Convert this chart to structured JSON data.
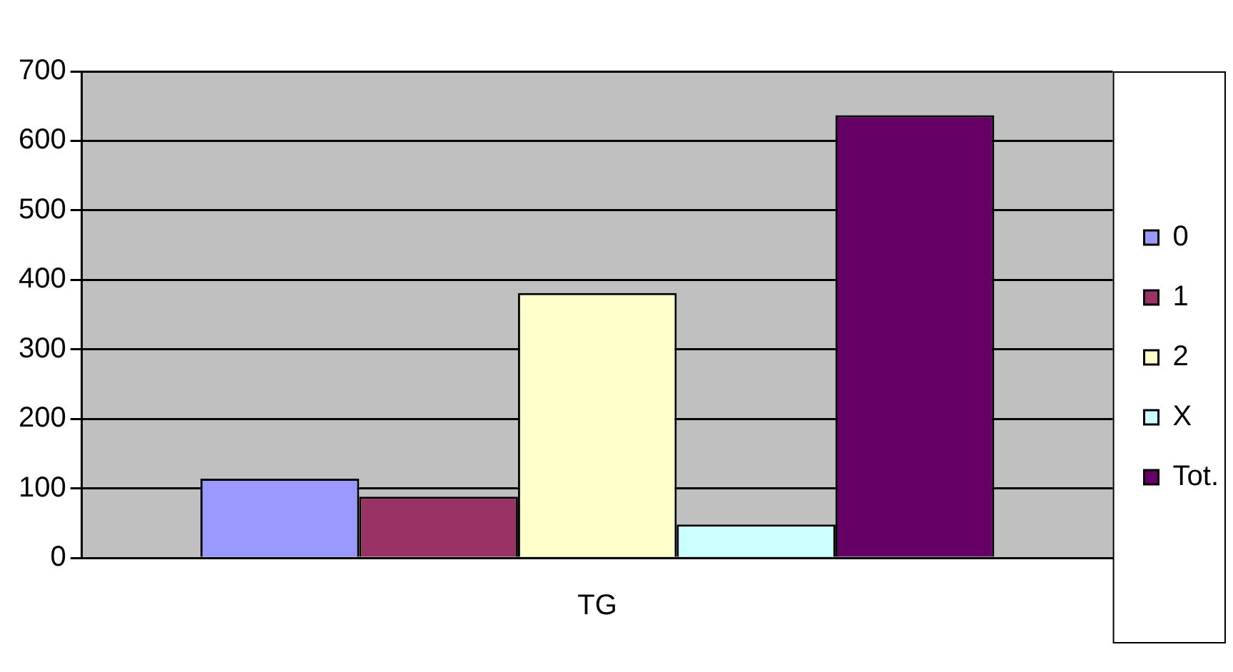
{
  "chart_data": {
    "type": "bar",
    "categories": [
      "TG"
    ],
    "series": [
      {
        "name": "0",
        "color": "#9999ff",
        "values": [
          114
        ]
      },
      {
        "name": "1",
        "color": "#993366",
        "values": [
          88
        ]
      },
      {
        "name": "2",
        "color": "#ffffcc",
        "values": [
          381
        ]
      },
      {
        "name": "X",
        "color": "#ccffff",
        "values": [
          48
        ]
      },
      {
        "name": "Tot.",
        "color": "#660066",
        "values": [
          637
        ]
      }
    ],
    "ylim": [
      0,
      700
    ],
    "yticks": [
      0,
      100,
      200,
      300,
      400,
      500,
      600,
      700
    ],
    "grid": "y",
    "legend": "right"
  }
}
